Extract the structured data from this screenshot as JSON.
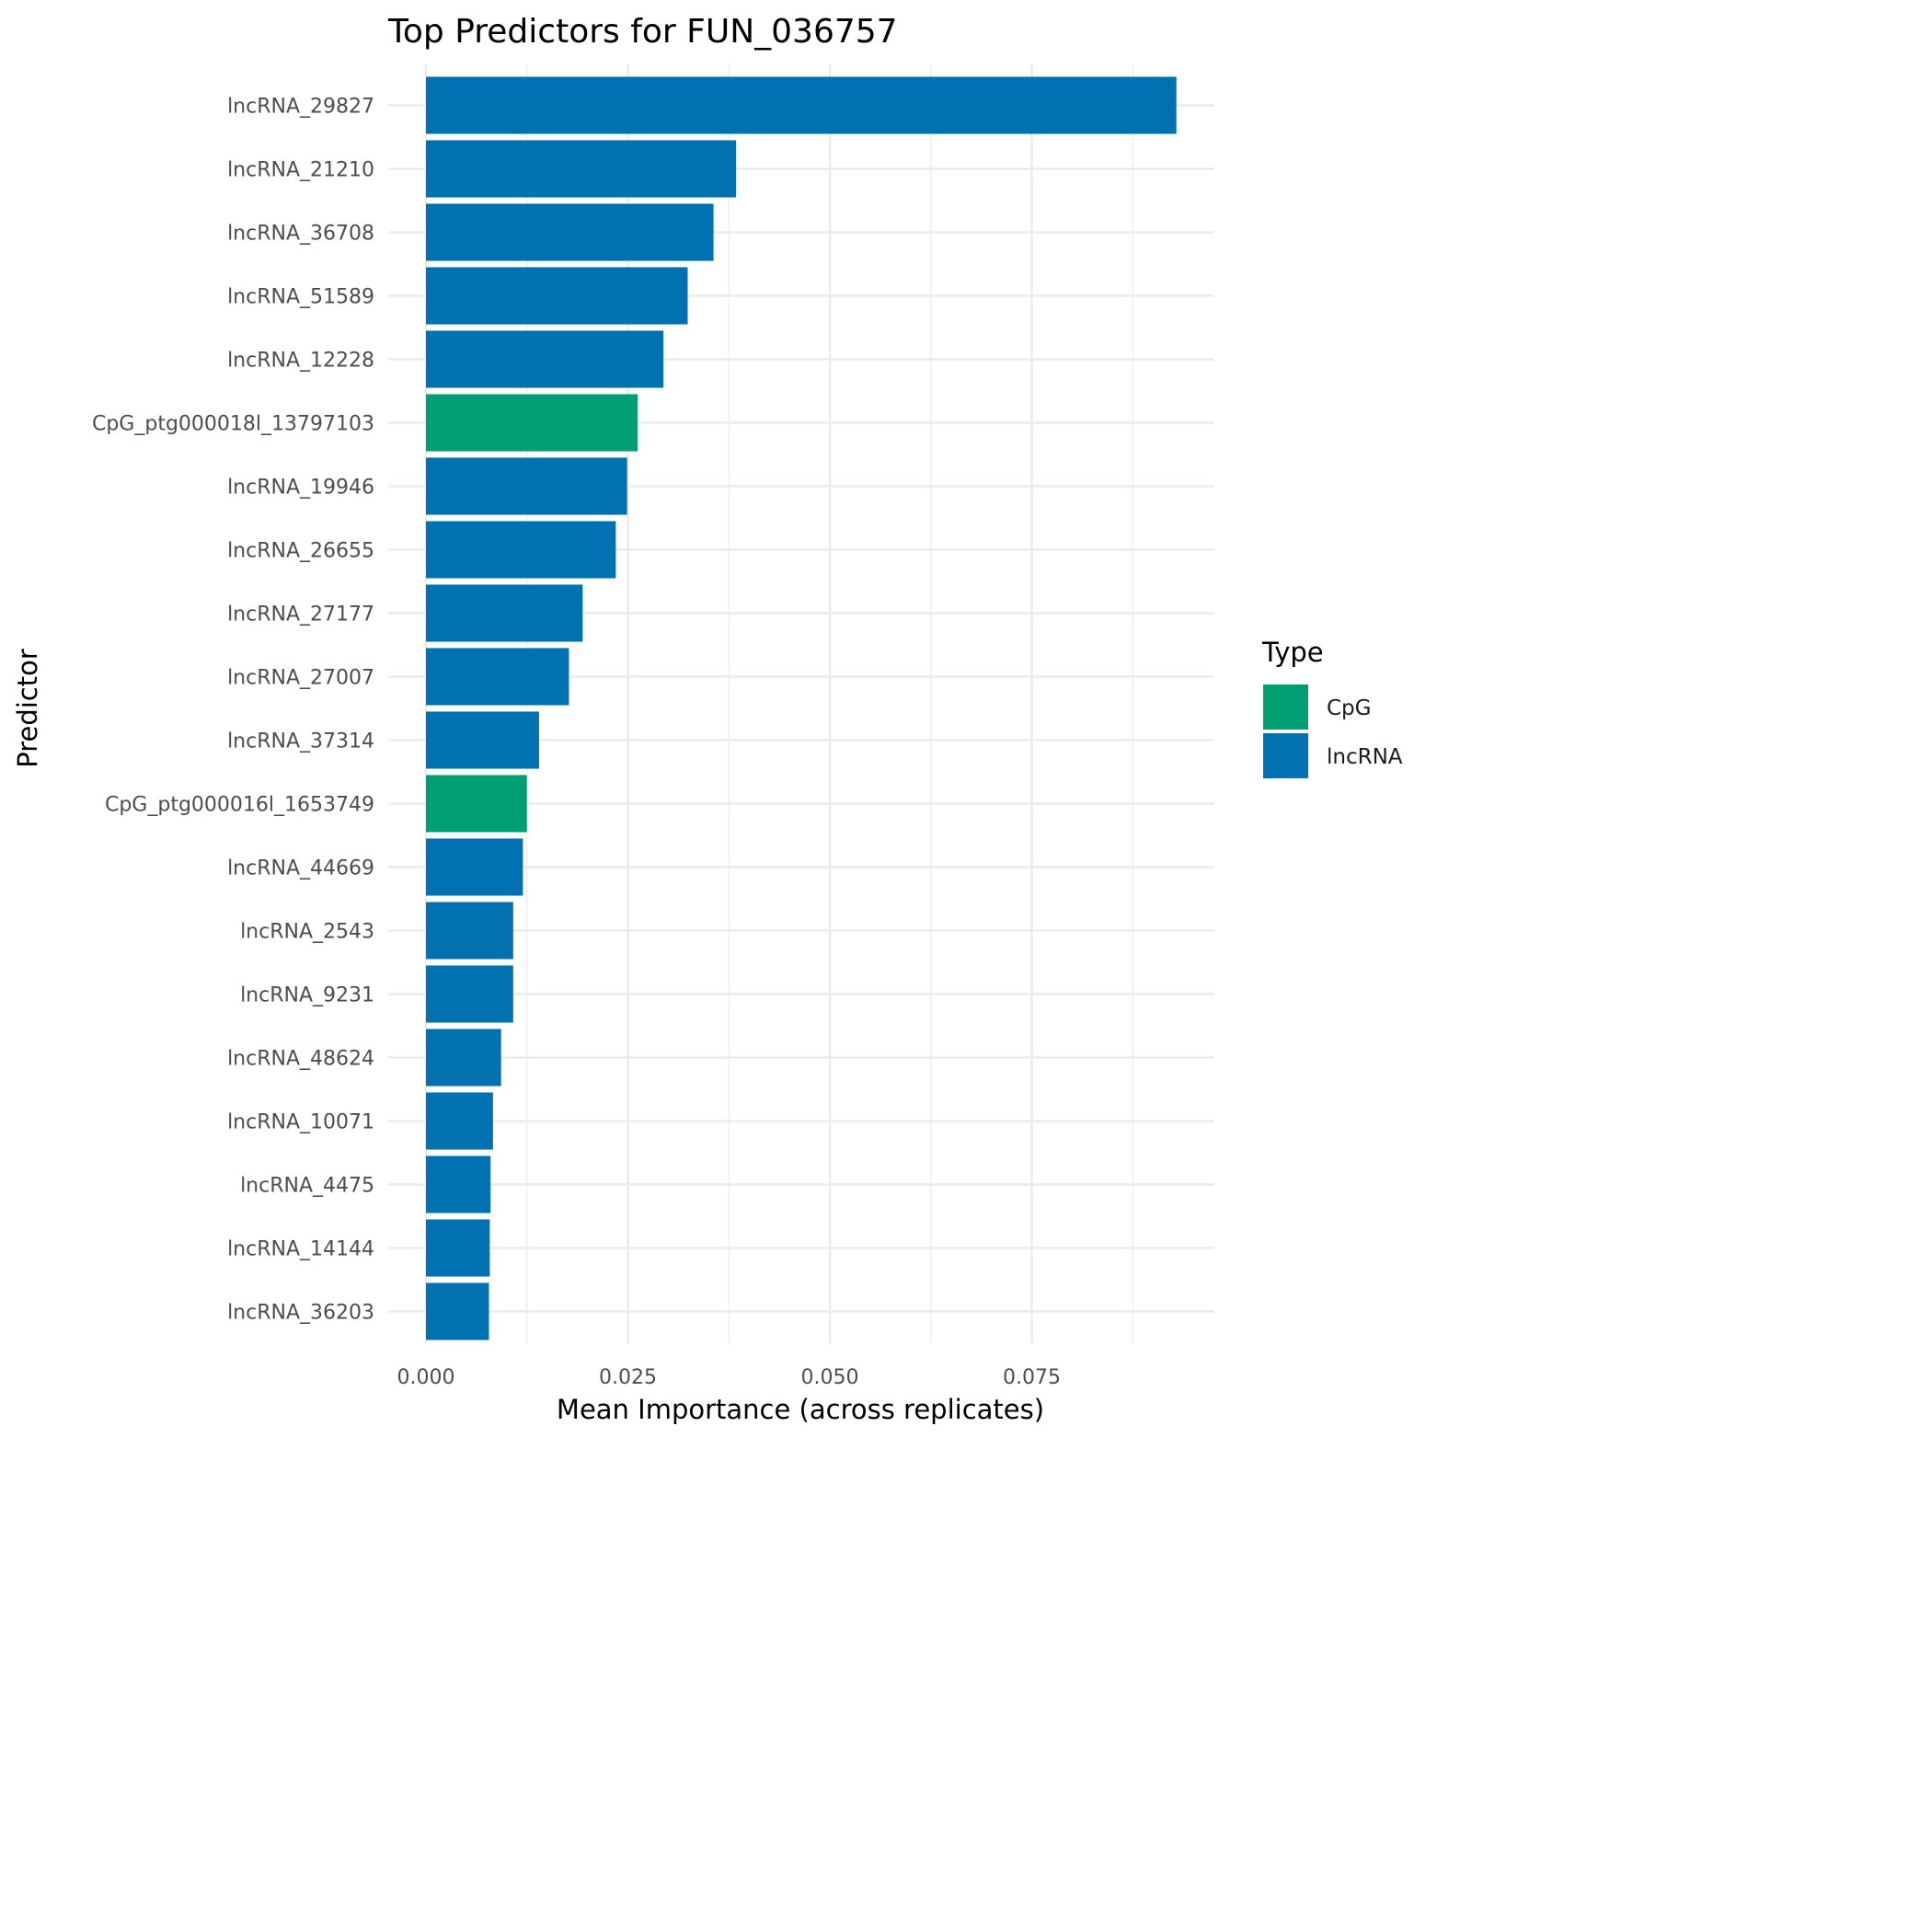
{
  "chart_data": {
    "type": "bar",
    "orientation": "horizontal",
    "title": "Top Predictors for FUN_036757",
    "xlabel": "Mean Importance (across replicates)",
    "ylabel": "Predictor",
    "xlim": [
      0,
      0.0975
    ],
    "x_ticks": [
      0.0,
      0.025,
      0.05,
      0.075
    ],
    "x_tick_labels": [
      "0.000",
      "0.025",
      "0.050",
      "0.075"
    ],
    "grid": true,
    "legend": {
      "title": "Type",
      "position": "right",
      "entries": [
        {
          "label": "CpG",
          "color": "#009E73"
        },
        {
          "label": "lncRNA",
          "color": "#0072B2"
        }
      ]
    },
    "categories": [
      "lncRNA_29827",
      "lncRNA_21210",
      "lncRNA_36708",
      "lncRNA_51589",
      "lncRNA_12228",
      "CpG_ptg000018l_13797103",
      "lncRNA_19946",
      "lncRNA_26655",
      "lncRNA_27177",
      "lncRNA_27007",
      "lncRNA_37314",
      "CpG_ptg000016l_1653749",
      "lncRNA_44669",
      "lncRNA_2543",
      "lncRNA_9231",
      "lncRNA_48624",
      "lncRNA_10071",
      "lncRNA_4475",
      "lncRNA_14144",
      "lncRNA_36203"
    ],
    "values": [
      0.0929,
      0.0384,
      0.0356,
      0.0324,
      0.0294,
      0.0262,
      0.0249,
      0.0235,
      0.0194,
      0.0177,
      0.014,
      0.0125,
      0.012,
      0.0108,
      0.0108,
      0.0093,
      0.0083,
      0.008,
      0.0079,
      0.0078
    ],
    "types": [
      "lncRNA",
      "lncRNA",
      "lncRNA",
      "lncRNA",
      "lncRNA",
      "CpG",
      "lncRNA",
      "lncRNA",
      "lncRNA",
      "lncRNA",
      "lncRNA",
      "CpG",
      "lncRNA",
      "lncRNA",
      "lncRNA",
      "lncRNA",
      "lncRNA",
      "lncRNA",
      "lncRNA",
      "lncRNA"
    ],
    "colors": {
      "CpG": "#009E73",
      "lncRNA": "#0072B2"
    }
  }
}
